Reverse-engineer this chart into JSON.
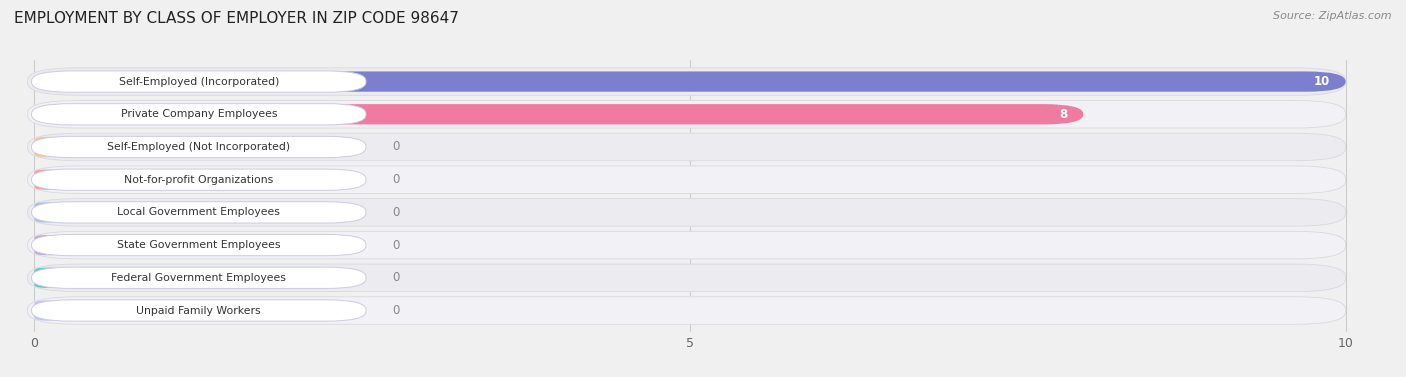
{
  "title": "EMPLOYMENT BY CLASS OF EMPLOYER IN ZIP CODE 98647",
  "source": "Source: ZipAtlas.com",
  "categories": [
    "Self-Employed (Incorporated)",
    "Private Company Employees",
    "Self-Employed (Not Incorporated)",
    "Not-for-profit Organizations",
    "Local Government Employees",
    "State Government Employees",
    "Federal Government Employees",
    "Unpaid Family Workers"
  ],
  "values": [
    10,
    8,
    0,
    0,
    0,
    0,
    0,
    0
  ],
  "bar_colors": [
    "#7b7fcd",
    "#f07aa0",
    "#f5c897",
    "#f0a0a0",
    "#a0c4e8",
    "#c0a8d8",
    "#5ec8c8",
    "#c0c8f0"
  ],
  "xlim": [
    0,
    10
  ],
  "xticks": [
    0,
    5,
    10
  ],
  "value_label_color": "#ffffff",
  "zero_label_color": "#888888",
  "background_color": "#f0f0f0",
  "row_bg_color": "#e8e8ee",
  "row_bg_light": "#f5f5f8",
  "title_fontsize": 11,
  "bar_height": 0.62
}
